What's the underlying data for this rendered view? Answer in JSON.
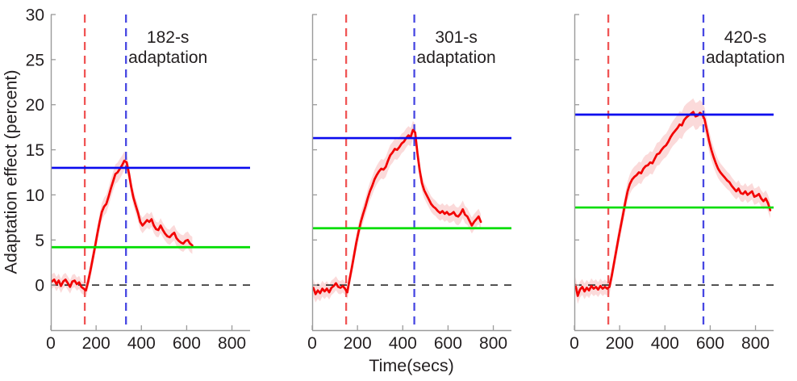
{
  "figure": {
    "ylabel": "Adaptation effect (percent)",
    "xlabel": "Time(secs)",
    "axes": {
      "xlim": [
        0,
        880
      ],
      "ylim": [
        -5,
        30
      ],
      "xticks": [
        0,
        200,
        400,
        600,
        800
      ],
      "yticks": [
        0,
        5,
        10,
        15,
        20,
        25,
        30
      ],
      "grid": false
    },
    "colors": {
      "curve": "#f20000",
      "band": "rgba(242,121,121,0.28)",
      "blue_ref": "#0a0aee",
      "green_ref": "#00dd00",
      "onset_dash": "#f05555",
      "offset_dash": "#4747e2",
      "zero_dash": "#1a1a1a",
      "axis": "#9b9b9b",
      "text": "#231f20"
    }
  },
  "chart_data": [
    {
      "type": "line",
      "panel": "left",
      "label_line1": "182-s",
      "label_line2": "adaptation",
      "onset_time_s": 150,
      "offset_time_s": 332,
      "blue_ref_level": 13.0,
      "green_ref_level": 4.2,
      "zero_ref_level": 0,
      "series": {
        "t": [
          5,
          15,
          25,
          35,
          45,
          55,
          65,
          75,
          85,
          95,
          105,
          115,
          125,
          135,
          145,
          155,
          165,
          175,
          185,
          195,
          205,
          215,
          225,
          235,
          245,
          255,
          265,
          275,
          285,
          295,
          305,
          315,
          325,
          335,
          345,
          355,
          365,
          375,
          385,
          395,
          405,
          415,
          425,
          435,
          445,
          455,
          465,
          475,
          485,
          495,
          505,
          515,
          525,
          535,
          545,
          555,
          565,
          575,
          585,
          595,
          605,
          615,
          625
        ],
        "v": [
          0.4,
          0.6,
          0.1,
          0.5,
          -0.1,
          0.4,
          0.6,
          0.2,
          -0.2,
          0.4,
          0.5,
          0.1,
          0.3,
          -0.2,
          -0.4,
          -0.6,
          0.4,
          1.6,
          2.9,
          4.2,
          5.6,
          6.9,
          8.1,
          8.7,
          9.0,
          9.8,
          10.7,
          11.5,
          12.3,
          12.5,
          12.9,
          13.3,
          13.8,
          13.6,
          12.4,
          10.9,
          9.7,
          8.8,
          8.0,
          7.0,
          6.6,
          6.9,
          7.2,
          7.0,
          7.3,
          6.6,
          6.2,
          6.1,
          6.6,
          6.1,
          5.7,
          5.4,
          5.3,
          5.6,
          5.8,
          5.2,
          4.9,
          4.7,
          4.6,
          4.9,
          5.0,
          4.6,
          4.4
        ],
        "e_breakpoints": [
          [
            5,
            0.8
          ],
          [
            145,
            0.7
          ],
          [
            175,
            0.9
          ],
          [
            305,
            1.1
          ],
          [
            345,
            0.9
          ],
          [
            425,
            0.85
          ],
          [
            505,
            0.8
          ],
          [
            565,
            0.9
          ],
          [
            625,
            0.95
          ]
        ]
      }
    },
    {
      "type": "line",
      "panel": "middle",
      "label_line1": "301-s",
      "label_line2": "adaptation",
      "onset_time_s": 150,
      "offset_time_s": 451,
      "blue_ref_level": 16.3,
      "green_ref_level": 6.3,
      "zero_ref_level": 0,
      "series": {
        "t": [
          5,
          15,
          25,
          35,
          45,
          55,
          65,
          75,
          85,
          95,
          105,
          115,
          125,
          135,
          145,
          155,
          165,
          175,
          185,
          195,
          205,
          215,
          225,
          235,
          245,
          255,
          265,
          275,
          285,
          295,
          305,
          315,
          325,
          335,
          345,
          355,
          365,
          375,
          385,
          395,
          405,
          415,
          425,
          435,
          445,
          455,
          465,
          475,
          485,
          495,
          505,
          515,
          525,
          535,
          545,
          555,
          565,
          575,
          585,
          595,
          605,
          615,
          625,
          635,
          645,
          655,
          665,
          675,
          685,
          695,
          705,
          715,
          725,
          735,
          745
        ],
        "v": [
          -0.3,
          -1.0,
          -0.6,
          -0.9,
          -0.4,
          -0.7,
          -0.4,
          -0.8,
          -0.3,
          -0.1,
          0.2,
          -0.2,
          -0.3,
          -0.1,
          -0.4,
          -0.8,
          0.6,
          1.9,
          3.3,
          4.7,
          5.9,
          7.0,
          7.9,
          8.7,
          9.6,
          10.4,
          11.0,
          11.7,
          12.2,
          12.6,
          12.9,
          12.8,
          13.1,
          13.8,
          14.4,
          14.7,
          15.1,
          15.0,
          15.3,
          15.7,
          15.9,
          16.3,
          16.6,
          16.4,
          17.2,
          16.9,
          14.6,
          12.7,
          11.3,
          10.5,
          10.0,
          9.5,
          9.0,
          8.7,
          8.5,
          8.2,
          8.0,
          8.2,
          7.9,
          8.1,
          7.8,
          7.9,
          8.1,
          7.7,
          7.6,
          7.9,
          8.4,
          7.8,
          7.6,
          7.1,
          6.6,
          7.0,
          7.3,
          7.6,
          7.0
        ],
        "e_breakpoints": [
          [
            5,
            0.95
          ],
          [
            145,
            0.7
          ],
          [
            175,
            0.9
          ],
          [
            255,
            1.0
          ],
          [
            355,
            1.15
          ],
          [
            445,
            1.0
          ],
          [
            475,
            0.9
          ],
          [
            555,
            0.85
          ],
          [
            655,
            1.0
          ],
          [
            695,
            0.9
          ],
          [
            745,
            0.85
          ]
        ]
      }
    },
    {
      "type": "line",
      "panel": "right",
      "label_line1": "420-s",
      "label_line2": "adaptation",
      "onset_time_s": 150,
      "offset_time_s": 570,
      "blue_ref_level": 18.9,
      "green_ref_level": 8.6,
      "zero_ref_level": 0,
      "series": {
        "t": [
          5,
          15,
          25,
          35,
          45,
          55,
          65,
          75,
          85,
          95,
          105,
          115,
          125,
          135,
          145,
          155,
          165,
          175,
          185,
          195,
          205,
          215,
          225,
          235,
          245,
          255,
          265,
          275,
          285,
          295,
          305,
          315,
          325,
          335,
          345,
          355,
          365,
          375,
          385,
          395,
          405,
          415,
          425,
          435,
          445,
          455,
          465,
          475,
          485,
          495,
          505,
          515,
          525,
          535,
          545,
          555,
          565,
          575,
          585,
          595,
          605,
          615,
          625,
          635,
          645,
          655,
          665,
          675,
          685,
          695,
          705,
          715,
          725,
          735,
          745,
          755,
          765,
          775,
          785,
          795,
          805,
          815,
          825,
          835,
          845,
          855,
          865
        ],
        "v": [
          0.0,
          -1.2,
          -0.5,
          -0.2,
          -0.7,
          -0.3,
          -0.6,
          -0.1,
          -0.4,
          -0.2,
          -0.5,
          -0.1,
          -0.4,
          -0.2,
          -0.4,
          -0.2,
          1.0,
          2.4,
          3.8,
          5.2,
          6.5,
          7.8,
          9.2,
          10.4,
          11.2,
          11.7,
          12.0,
          12.2,
          12.5,
          12.4,
          12.9,
          13.2,
          13.3,
          13.6,
          13.5,
          14.0,
          14.5,
          14.6,
          15.0,
          15.3,
          15.5,
          15.9,
          16.4,
          16.8,
          17.1,
          17.4,
          17.8,
          17.7,
          18.3,
          18.6,
          18.8,
          19.0,
          19.2,
          18.7,
          18.8,
          19.1,
          18.9,
          18.4,
          17.2,
          16.0,
          15.0,
          14.2,
          13.5,
          12.9,
          12.5,
          12.2,
          11.9,
          11.6,
          11.4,
          11.0,
          10.7,
          10.4,
          10.7,
          10.2,
          10.1,
          10.4,
          10.0,
          10.2,
          10.4,
          9.8,
          9.9,
          10.1,
          9.6,
          9.3,
          9.6,
          9.1,
          8.3
        ],
        "e_breakpoints": [
          [
            5,
            0.9
          ],
          [
            145,
            0.8
          ],
          [
            195,
            1.0
          ],
          [
            295,
            1.2
          ],
          [
            405,
            1.3
          ],
          [
            475,
            1.5
          ],
          [
            545,
            1.5
          ],
          [
            585,
            1.2
          ],
          [
            645,
            1.0
          ],
          [
            745,
            0.9
          ],
          [
            865,
            0.9
          ]
        ]
      }
    }
  ]
}
